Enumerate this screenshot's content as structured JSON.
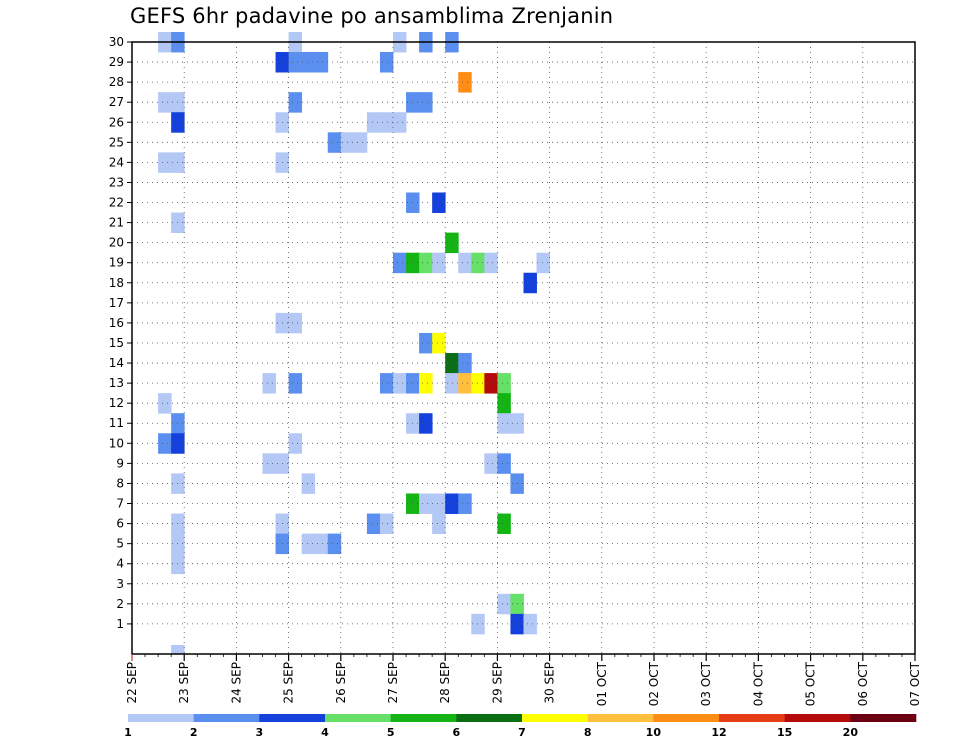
{
  "chart_data": {
    "type": "heatmap",
    "title": "GEFS 6hr padavine po ansamblima Zrenjanin",
    "xlabel": "",
    "ylabel": "",
    "x_start": "2025-09-22T00",
    "x_step_hours": 6,
    "x_ticks": [
      "22 SEP",
      "23 SEP",
      "24 SEP",
      "25 SEP",
      "26 SEP",
      "27 SEP",
      "28 SEP",
      "29 SEP",
      "30 SEP",
      "01 OCT",
      "02 OCT",
      "03 OCT",
      "04 OCT",
      "05 OCT",
      "06 OCT",
      "07 OCT"
    ],
    "y_range": [
      0,
      30
    ],
    "y_ticks": [
      1,
      2,
      3,
      4,
      5,
      6,
      7,
      8,
      9,
      10,
      11,
      12,
      13,
      14,
      15,
      16,
      17,
      18,
      19,
      20,
      21,
      22,
      23,
      24,
      25,
      26,
      27,
      28,
      29,
      30
    ],
    "grid": true,
    "levels": [
      "1",
      "2",
      "3",
      "4",
      "5",
      "6",
      "7",
      "8",
      "10",
      "12",
      "15",
      "20"
    ],
    "colors": [
      "#b4c8f5",
      "#5a8ff0",
      "#1440dc",
      "#66e066",
      "#14b414",
      "#0a6e14",
      "#ffff00",
      "#ffbe3c",
      "#ff8c14",
      "#e63c14",
      "#b40a0a",
      "#6e0014"
    ],
    "member_cells": [
      [
        30,
        2,
        0
      ],
      [
        30,
        3,
        1
      ],
      [
        30,
        12,
        0
      ],
      [
        30,
        20,
        0
      ],
      [
        30,
        22,
        1
      ],
      [
        30,
        24,
        1
      ],
      [
        29,
        11,
        2
      ],
      [
        29,
        12,
        1
      ],
      [
        29,
        13,
        1
      ],
      [
        29,
        14,
        1
      ],
      [
        29,
        19,
        1
      ],
      [
        28,
        25,
        8
      ],
      [
        27,
        2,
        0
      ],
      [
        27,
        3,
        0
      ],
      [
        27,
        12,
        1
      ],
      [
        27,
        21,
        1
      ],
      [
        27,
        22,
        1
      ],
      [
        26,
        3,
        2
      ],
      [
        26,
        11,
        0
      ],
      [
        26,
        18,
        0
      ],
      [
        26,
        19,
        0
      ],
      [
        26,
        20,
        0
      ],
      [
        25,
        15,
        1
      ],
      [
        25,
        16,
        0
      ],
      [
        25,
        17,
        0
      ],
      [
        24,
        2,
        0
      ],
      [
        24,
        3,
        0
      ],
      [
        24,
        11,
        0
      ],
      [
        22,
        21,
        1
      ],
      [
        22,
        23,
        2
      ],
      [
        21,
        3,
        0
      ],
      [
        20,
        24,
        4
      ],
      [
        19,
        20,
        1
      ],
      [
        19,
        21,
        4
      ],
      [
        19,
        22,
        3
      ],
      [
        19,
        23,
        0
      ],
      [
        19,
        25,
        0
      ],
      [
        19,
        26,
        3
      ],
      [
        19,
        27,
        0
      ],
      [
        19,
        31,
        0
      ],
      [
        18,
        30,
        2
      ],
      [
        16,
        11,
        0
      ],
      [
        16,
        12,
        0
      ],
      [
        15,
        22,
        1
      ],
      [
        15,
        23,
        6
      ],
      [
        14,
        24,
        5
      ],
      [
        14,
        25,
        1
      ],
      [
        13,
        10,
        0
      ],
      [
        13,
        12,
        1
      ],
      [
        13,
        19,
        1
      ],
      [
        13,
        20,
        0
      ],
      [
        13,
        21,
        1
      ],
      [
        13,
        22,
        6
      ],
      [
        13,
        24,
        0
      ],
      [
        13,
        25,
        7
      ],
      [
        13,
        26,
        6
      ],
      [
        13,
        27,
        10
      ],
      [
        13,
        28,
        3
      ],
      [
        12,
        2,
        0
      ],
      [
        12,
        28,
        4
      ],
      [
        11,
        3,
        1
      ],
      [
        11,
        21,
        0
      ],
      [
        11,
        22,
        2
      ],
      [
        11,
        28,
        0
      ],
      [
        11,
        29,
        0
      ],
      [
        10,
        2,
        1
      ],
      [
        10,
        3,
        2
      ],
      [
        10,
        12,
        0
      ],
      [
        9,
        10,
        0
      ],
      [
        9,
        11,
        0
      ],
      [
        9,
        27,
        0
      ],
      [
        9,
        28,
        1
      ],
      [
        8,
        3,
        0
      ],
      [
        8,
        13,
        0
      ],
      [
        8,
        29,
        1
      ],
      [
        7,
        21,
        4
      ],
      [
        7,
        22,
        0
      ],
      [
        7,
        23,
        0
      ],
      [
        7,
        24,
        2
      ],
      [
        7,
        25,
        1
      ],
      [
        6,
        3,
        0
      ],
      [
        6,
        11,
        0
      ],
      [
        6,
        18,
        1
      ],
      [
        6,
        19,
        0
      ],
      [
        6,
        23,
        0
      ],
      [
        6,
        28,
        4
      ],
      [
        5,
        3,
        0
      ],
      [
        5,
        11,
        1
      ],
      [
        5,
        13,
        0
      ],
      [
        5,
        14,
        0
      ],
      [
        5,
        15,
        1
      ],
      [
        4,
        3,
        0
      ],
      [
        2,
        28,
        0
      ],
      [
        2,
        29,
        3
      ],
      [
        1,
        26,
        0
      ],
      [
        1,
        29,
        2
      ],
      [
        1,
        30,
        0
      ],
      [
        0,
        3,
        0
      ]
    ]
  }
}
